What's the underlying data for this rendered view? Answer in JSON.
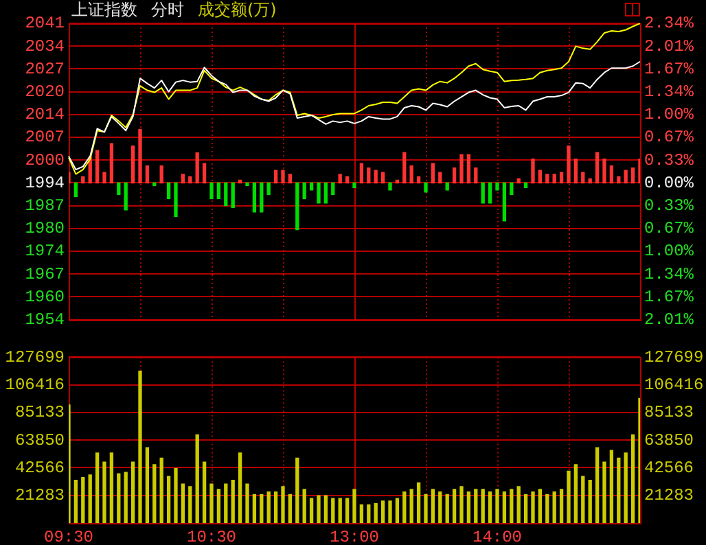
{
  "chart_data": [
    {
      "type": "line",
      "title": "上证指数",
      "subtitle": "分时",
      "annotations": [
        "成交额(万)"
      ],
      "tick_labels": "y",
      "grid": true,
      "categories": [
        null,
        null,
        null,
        null,
        null,
        null,
        null,
        null,
        null,
        null,
        null,
        null,
        null,
        null,
        null,
        null,
        null,
        null,
        null,
        null,
        null,
        null,
        null,
        null,
        null,
        null,
        null,
        null,
        null,
        null,
        null,
        null,
        null,
        null,
        null,
        null,
        null,
        null,
        null,
        null,
        null,
        null,
        null,
        null,
        null,
        null,
        null,
        null,
        null,
        null,
        null,
        null,
        null,
        null,
        null,
        null,
        null,
        null,
        null,
        null,
        null,
        null,
        null,
        null,
        null,
        null,
        null,
        null,
        null,
        null,
        null,
        null,
        null,
        null,
        null,
        null,
        null,
        null,
        null,
        null,
        null
      ],
      "ylim": [
        1953.795,
        2040.505
      ],
      "yticks": [
        {
          "value": 2040.505,
          "label": "2041"
        },
        {
          "value": 2033.835,
          "label": "2034"
        },
        {
          "value": 2027.165,
          "label": "2027"
        },
        {
          "value": 2020.495,
          "label": "2020"
        },
        {
          "value": 2013.825,
          "label": "2014"
        },
        {
          "value": 2007.155,
          "label": "2007"
        },
        {
          "value": 2000.485,
          "label": "2000"
        },
        {
          "value": 1993.815,
          "label": "1994"
        },
        {
          "value": 1987.145,
          "label": "1987"
        },
        {
          "value": 1980.475,
          "label": "1980"
        },
        {
          "value": 1973.805,
          "label": "1974"
        },
        {
          "value": 1967.135,
          "label": "1967"
        },
        {
          "value": 1960.465,
          "label": "1960"
        },
        {
          "value": 1953.795,
          "label": "1954"
        }
      ],
      "y2lim": [
        -2.006,
        2.34
      ],
      "y2ticks": [
        {
          "value": 2.34,
          "label": "2.34%"
        },
        {
          "value": 2.006,
          "label": "2.01%"
        },
        {
          "value": 1.671,
          "label": "1.67%"
        },
        {
          "value": 1.337,
          "label": "1.34%"
        },
        {
          "value": 1.003,
          "label": "1.00%"
        },
        {
          "value": 0.669,
          "label": "0.67%"
        },
        {
          "value": 0.334,
          "label": "0.33%"
        },
        {
          "value": 0,
          "label": "0.00%"
        },
        {
          "value": -0.334,
          "label": "0.33%"
        },
        {
          "value": -0.669,
          "label": "0.67%"
        },
        {
          "value": -1.003,
          "label": "1.00%"
        },
        {
          "value": -1.337,
          "label": "1.34%"
        },
        {
          "value": -1.671,
          "label": "1.67%"
        },
        {
          "value": -2.006,
          "label": "2.01%"
        }
      ],
      "series": [
        {
          "color": "#ffffff",
          "values": [
            2001.6,
            1997.7,
            1998.6,
            2001.6,
            2009.7,
            2008.7,
            2013.2,
            2011.2,
            2009.1,
            2013.2,
            2024.4,
            2022.9,
            2021.6,
            2023.8,
            2020.5,
            2023.3,
            2023.8,
            2023.3,
            2023.5,
            2027.6,
            2025.2,
            2023.5,
            2022.6,
            2020.3,
            2020.9,
            2020.9,
            2019.2,
            2018.3,
            2017.7,
            2018.7,
            2020.9,
            2019.9,
            2012.8,
            2013.2,
            2013.6,
            2012.3,
            2011.0,
            2011.9,
            2011.5,
            2011.9,
            2011.2,
            2011.9,
            2013.2,
            2012.8,
            2012.5,
            2012.5,
            2013.2,
            2015.8,
            2016.4,
            2016.1,
            2015.1,
            2017.1,
            2016.7,
            2016.1,
            2017.7,
            2019.0,
            2020.3,
            2020.9,
            2019.6,
            2018.7,
            2018.3,
            2015.8,
            2016.2,
            2016.4,
            2015.1,
            2017.7,
            2018.3,
            2019.0,
            2019.0,
            2019.4,
            2020.3,
            2023.1,
            2022.9,
            2021.6,
            2024.1,
            2026.1,
            2027.4,
            2027.4,
            2027.4,
            2028.0,
            2029.3
          ]
        },
        {
          "color": "#ffff00",
          "values": [
            2001.2,
            1996.4,
            1997.7,
            2000.7,
            2009.1,
            2008.7,
            2013.6,
            2011.9,
            2010.0,
            2013.8,
            2022.2,
            2020.9,
            2020.3,
            2021.6,
            2018.3,
            2020.9,
            2020.9,
            2020.9,
            2021.6,
            2026.7,
            2024.4,
            2023.5,
            2021.8,
            2020.9,
            2021.8,
            2020.9,
            2019.6,
            2018.3,
            2017.9,
            2019.6,
            2020.9,
            2020.3,
            2013.6,
            2014.1,
            2013.6,
            2012.8,
            2013.2,
            2013.8,
            2014.1,
            2014.1,
            2014.1,
            2015.1,
            2016.4,
            2016.8,
            2017.4,
            2017.4,
            2017.1,
            2019.0,
            2020.9,
            2021.3,
            2020.9,
            2022.5,
            2023.5,
            2023.1,
            2024.4,
            2026.1,
            2028.0,
            2028.7,
            2027.0,
            2026.5,
            2026.1,
            2023.5,
            2023.8,
            2023.9,
            2024.1,
            2024.4,
            2026.1,
            2026.7,
            2027.0,
            2027.4,
            2029.3,
            2033.8,
            2033.2,
            2032.9,
            2035.1,
            2037.7,
            2038.3,
            2038.1,
            2038.6,
            2039.6,
            2040.5
          ]
        },
        {
          "type": "bar",
          "base": [
            1993.8,
            1993.8,
            1993.8,
            1993.8,
            1993.8,
            1993.8,
            1993.8,
            1993.8,
            1993.8,
            1993.8,
            1993.8,
            1993.8,
            1993.8,
            1993.8,
            1993.8,
            1993.8,
            1993.8,
            1993.8,
            1993.8,
            1993.8,
            1993.8,
            1993.8,
            1993.8,
            1993.8,
            1993.8,
            1993.8,
            1993.8,
            1993.8,
            1993.8,
            1993.8,
            1993.8,
            1993.8,
            1993.8,
            1993.8,
            1993.8,
            1993.8,
            1993.8,
            1993.8,
            1993.8,
            1993.8,
            1993.8,
            1993.8,
            1993.8,
            1993.8,
            1993.8,
            1993.8,
            1993.8,
            1993.8,
            1993.8,
            1993.8,
            1993.8,
            1993.8,
            1993.8,
            1993.8,
            1993.8,
            1993.8,
            1993.8,
            1993.8,
            1993.8,
            1993.8,
            1993.8,
            1993.8,
            1993.8,
            1993.8,
            1993.8,
            1993.8,
            1993.8,
            1993.8,
            1993.8,
            1993.8,
            1993.8,
            1993.8,
            1993.8,
            1993.8,
            1993.8,
            1993.8,
            1993.8,
            1993.8,
            1993.8,
            1993.8,
            1993.8
          ],
          "values": [
            3.1,
            -4.0,
            1.8,
            7.6,
            9.5,
            3.1,
            11.5,
            -3.4,
            -7.9,
            10.8,
            15.7,
            5.0,
            -0.8,
            5.0,
            -4.6,
            -9.8,
            2.5,
            1.8,
            8.8,
            5.7,
            -4.6,
            -4.6,
            -6.6,
            -7.2,
            0.8,
            -0.8,
            -8.5,
            -8.5,
            -3.4,
            3.7,
            3.7,
            2.5,
            -13.7,
            -4.6,
            -2.1,
            -5.9,
            -5.9,
            -3.4,
            2.5,
            1.8,
            -1.4,
            5.7,
            4.4,
            3.7,
            3.1,
            -2.1,
            0.8,
            8.9,
            5.0,
            1.8,
            -2.7,
            5.7,
            3.1,
            -2.1,
            4.4,
            8.3,
            8.3,
            4.4,
            -5.9,
            -5.9,
            -2.1,
            -11.1,
            -3.4,
            1.2,
            -1.4,
            7.0,
            3.7,
            2.5,
            2.5,
            3.1,
            10.8,
            7.0,
            3.1,
            1.2,
            8.9,
            7.0,
            5.0,
            1.8,
            3.7,
            4.4,
            7.0
          ],
          "colors": [
            "#ff3232",
            "#00dd00",
            "#ff3232",
            "#ff3232",
            "#ff3232",
            "#ff3232",
            "#ff3232",
            "#00dd00",
            "#00dd00",
            "#ff3232",
            "#ff3232",
            "#ff3232",
            "#00dd00",
            "#ff3232",
            "#00dd00",
            "#00dd00",
            "#ff3232",
            "#ff3232",
            "#ff3232",
            "#ff3232",
            "#00dd00",
            "#00dd00",
            "#00dd00",
            "#00dd00",
            "#ff3232",
            "#00dd00",
            "#00dd00",
            "#00dd00",
            "#00dd00",
            "#ff3232",
            "#ff3232",
            "#ff3232",
            "#00dd00",
            "#00dd00",
            "#00dd00",
            "#00dd00",
            "#00dd00",
            "#00dd00",
            "#ff3232",
            "#ff3232",
            "#00dd00",
            "#ff3232",
            "#ff3232",
            "#ff3232",
            "#ff3232",
            "#00dd00",
            "#ff3232",
            "#ff3232",
            "#ff3232",
            "#ff3232",
            "#00dd00",
            "#ff3232",
            "#ff3232",
            "#00dd00",
            "#ff3232",
            "#ff3232",
            "#ff3232",
            "#ff3232",
            "#00dd00",
            "#00dd00",
            "#00dd00",
            "#00dd00",
            "#00dd00",
            "#ff3232",
            "#00dd00",
            "#ff3232",
            "#ff3232",
            "#ff3232",
            "#ff3232",
            "#ff3232",
            "#ff3232",
            "#ff3232",
            "#ff3232",
            "#ff3232",
            "#ff3232",
            "#ff3232",
            "#ff3232",
            "#ff3232",
            "#ff3232",
            "#ff3232",
            "#ff3232"
          ]
        }
      ]
    },
    {
      "type": "bar",
      "grid": true,
      "categories": [
        "09:30",
        null,
        null,
        null,
        null,
        null,
        null,
        null,
        null,
        null,
        null,
        null,
        null,
        null,
        null,
        null,
        null,
        null,
        null,
        null,
        "10:30",
        null,
        null,
        null,
        null,
        null,
        null,
        null,
        null,
        null,
        null,
        null,
        null,
        null,
        null,
        null,
        null,
        null,
        null,
        null,
        "13:00",
        null,
        null,
        null,
        null,
        null,
        null,
        null,
        null,
        null,
        null,
        null,
        null,
        null,
        null,
        null,
        null,
        null,
        null,
        null,
        "14:00",
        null,
        null,
        null,
        null,
        null,
        null,
        null,
        null,
        null,
        null,
        null,
        null,
        null,
        null,
        null,
        null,
        null,
        null,
        null,
        null
      ],
      "ylim": [
        0,
        127699
      ],
      "yticks": [
        21283,
        42566,
        63850,
        85133,
        106416,
        127699
      ],
      "y2lim": [
        0,
        127699
      ],
      "y2ticks": [
        21283,
        42566,
        63850,
        85133,
        106416,
        127699
      ],
      "series": [
        {
          "color": "#cccc00",
          "values": [
            91000,
            33000,
            35000,
            37000,
            54000,
            47000,
            54000,
            38000,
            39000,
            47000,
            117000,
            58000,
            45000,
            50000,
            36000,
            42000,
            30000,
            28000,
            68000,
            47000,
            30000,
            26000,
            30000,
            33000,
            54000,
            30000,
            22000,
            22000,
            24000,
            24000,
            28000,
            22000,
            50000,
            26000,
            19000,
            21000,
            21000,
            19000,
            19000,
            19000,
            26000,
            14000,
            14000,
            15000,
            17000,
            17000,
            19000,
            24000,
            26000,
            31000,
            22000,
            26000,
            24000,
            22000,
            26000,
            28000,
            24000,
            26000,
            26000,
            24000,
            26000,
            24000,
            26000,
            28000,
            22000,
            24000,
            26000,
            22000,
            24000,
            26000,
            40000,
            45000,
            36000,
            33000,
            58000,
            47000,
            56000,
            50000,
            54000,
            68000,
            96000
          ]
        }
      ]
    }
  ]
}
